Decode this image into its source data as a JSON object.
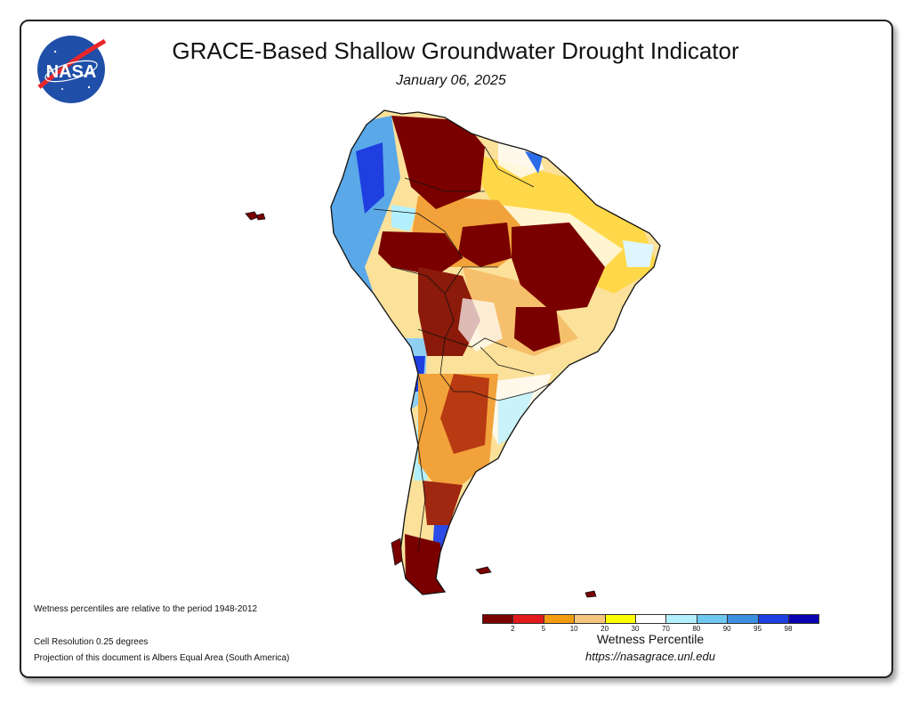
{
  "header": {
    "title": "GRACE-Based Shallow Groundwater Drought Indicator",
    "date": "January 06, 2025"
  },
  "logo": {
    "text": "NASA",
    "icon": "nasa-meatball-logo"
  },
  "notes": {
    "period": "Wetness percentiles are relative to the period 1948-2012",
    "resolution": "Cell Resolution 0.25 degrees",
    "projection": "Projection of this document is Albers Equal Area (South America)"
  },
  "legend": {
    "label": "Wetness Percentile",
    "colors": [
      "#7a0000",
      "#e31a1c",
      "#f39c12",
      "#f5c77e",
      "#ffff00",
      "#ffffff",
      "#b3f0ff",
      "#6fc8f0",
      "#3d8fe0",
      "#1f3fe0",
      "#0b00b0"
    ],
    "ticks": [
      "2",
      "5",
      "10",
      "20",
      "30",
      "70",
      "80",
      "90",
      "95",
      "98"
    ]
  },
  "footer": {
    "url": "https://nasagrace.unl.edu"
  }
}
